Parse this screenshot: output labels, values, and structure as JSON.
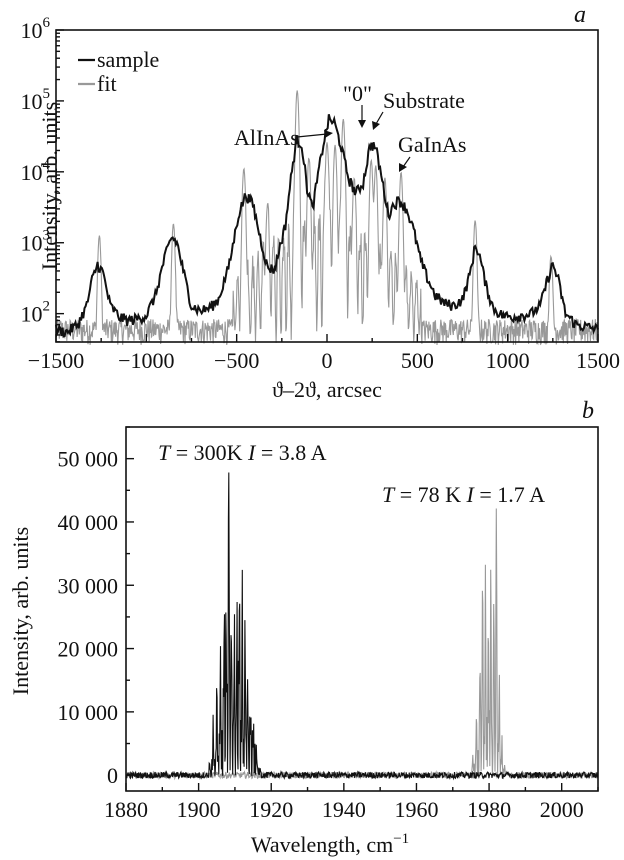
{
  "chart_data": [
    {
      "panel": "a",
      "type": "line",
      "xlabel": "ϑ–2ϑ, arcsec",
      "ylabel": "Intensity, arb. units",
      "xlim": [
        -1500,
        1500
      ],
      "ylim_log10": [
        1.6,
        6
      ],
      "yscale": "log",
      "x_ticks": [
        "−1500",
        "−1000",
        "−500",
        "0",
        "500",
        "1000",
        "1500"
      ],
      "y_ticks": [
        {
          "base": "10",
          "exp": "2"
        },
        {
          "base": "10",
          "exp": "3"
        },
        {
          "base": "10",
          "exp": "4"
        },
        {
          "base": "10",
          "exp": "5"
        },
        {
          "base": "10",
          "exp": "6"
        }
      ],
      "legend": {
        "position": "top-left",
        "entries": [
          "sample",
          "fit"
        ]
      },
      "series": [
        {
          "name": "sample",
          "color": "#111111",
          "points": [
            [
              -1500,
              60
            ],
            [
              -1440,
              55
            ],
            [
              -1380,
              70
            ],
            [
              -1330,
              130
            ],
            [
              -1300,
              300
            ],
            [
              -1270,
              500
            ],
            [
              -1240,
              380
            ],
            [
              -1200,
              130
            ],
            [
              -1150,
              90
            ],
            [
              -1100,
              80
            ],
            [
              -1050,
              85
            ],
            [
              -1000,
              95
            ],
            [
              -950,
              180
            ],
            [
              -900,
              600
            ],
            [
              -860,
              1200
            ],
            [
              -830,
              1000
            ],
            [
              -790,
              350
            ],
            [
              -750,
              130
            ],
            [
              -700,
              110
            ],
            [
              -650,
              120
            ],
            [
              -600,
              160
            ],
            [
              -540,
              500
            ],
            [
              -490,
              2500
            ],
            [
              -450,
              4800
            ],
            [
              -410,
              3500
            ],
            [
              -370,
              1200
            ],
            [
              -330,
              450
            ],
            [
              -290,
              420
            ],
            [
              -260,
              900
            ],
            [
              -230,
              1800
            ],
            [
              -200,
              8000
            ],
            [
              -170,
              28000
            ],
            [
              -140,
              25000
            ],
            [
              -110,
              6000
            ],
            [
              -80,
              3000
            ],
            [
              -50,
              9000
            ],
            [
              -20,
              25000
            ],
            [
              10,
              55000
            ],
            [
              40,
              50000
            ],
            [
              80,
              22000
            ],
            [
              120,
              8000
            ],
            [
              160,
              5000
            ],
            [
              200,
              7000
            ],
            [
              240,
              25000
            ],
            [
              270,
              22000
            ],
            [
              300,
              9000
            ],
            [
              340,
              2500
            ],
            [
              370,
              3500
            ],
            [
              400,
              4000
            ],
            [
              440,
              3000
            ],
            [
              480,
              1500
            ],
            [
              520,
              550
            ],
            [
              560,
              300
            ],
            [
              600,
              180
            ],
            [
              650,
              140
            ],
            [
              700,
              130
            ],
            [
              750,
              160
            ],
            [
              790,
              350
            ],
            [
              820,
              900
            ],
            [
              840,
              750
            ],
            [
              880,
              250
            ],
            [
              920,
              120
            ],
            [
              970,
              95
            ],
            [
              1020,
              90
            ],
            [
              1080,
              95
            ],
            [
              1130,
              100
            ],
            [
              1180,
              130
            ],
            [
              1220,
              300
            ],
            [
              1250,
              500
            ],
            [
              1280,
              300
            ],
            [
              1320,
              100
            ],
            [
              1380,
              70
            ],
            [
              1440,
              65
            ],
            [
              1500,
              60
            ]
          ]
        },
        {
          "name": "fit",
          "color": "#999999",
          "peaks": [
            [
              -1260,
              1200
            ],
            [
              -850,
              1800
            ],
            [
              -460,
              11000
            ],
            [
              -330,
              2800
            ],
            [
              -165,
              140000
            ],
            [
              -100,
              14000
            ],
            [
              0,
              26000
            ],
            [
              45,
              22000
            ],
            [
              90,
              55000
            ],
            [
              150,
              7000
            ],
            [
              245,
              14000
            ],
            [
              270,
              11000
            ],
            [
              320,
              8000
            ],
            [
              410,
              9500
            ],
            [
              820,
              2000
            ],
            [
              1240,
              600
            ]
          ],
          "background": 60
        }
      ],
      "annotations": [
        {
          "label": "AlInAs",
          "points_to_x": -165
        },
        {
          "label": "\"0\"",
          "points_to_x": 20
        },
        {
          "label": "Substrate",
          "points_to_x": 75
        },
        {
          "label": "GaInAs",
          "points_to_x": 250
        }
      ]
    },
    {
      "panel": "b",
      "type": "line",
      "xlabel": "Wavelength, cm",
      "xlabel_sup": "−1",
      "ylabel": "Intensity, arb. units",
      "xlim": [
        1880,
        2010
      ],
      "ylim": [
        -2500,
        55000
      ],
      "x_ticks": [
        "1880",
        "1900",
        "1920",
        "1940",
        "1960",
        "1980",
        "2000"
      ],
      "y_ticks": [
        "0",
        "10 000",
        "20 000",
        "30 000",
        "40 000",
        "50 000"
      ],
      "series": [
        {
          "name": "T = 300 K, I = 3.8 A",
          "color": "#111111",
          "envelope_peaks": [
            [
              1903,
              2000
            ],
            [
              1904,
              6000
            ],
            [
              1905,
              12000
            ],
            [
              1906,
              17000
            ],
            [
              1907,
              21000
            ],
            [
              1907.6,
              22000
            ],
            [
              1908.3,
              49000
            ],
            [
              1909,
              23000
            ],
            [
              1909.8,
              17500
            ],
            [
              1910.5,
              19000
            ],
            [
              1911.2,
              25500
            ],
            [
              1912,
              24000
            ],
            [
              1912.8,
              20000
            ],
            [
              1913.5,
              14000
            ],
            [
              1914.3,
              8500
            ],
            [
              1915,
              5000
            ],
            [
              1916,
              2500
            ],
            [
              1917,
              1200
            ]
          ],
          "noise": 500
        },
        {
          "name": "T = 78 K, I = 1.7 A",
          "color": "#999999",
          "envelope_peaks": [
            [
              1975.5,
              3000
            ],
            [
              1976.5,
              9000
            ],
            [
              1977.5,
              18000
            ],
            [
              1978.2,
              31500
            ],
            [
              1979,
              27000
            ],
            [
              1979.8,
              22000
            ],
            [
              1980.5,
              29000
            ],
            [
              1981.3,
              27000
            ],
            [
              1982,
              42000
            ],
            [
              1982.8,
              14000
            ],
            [
              1983.5,
              4000
            ],
            [
              1984.3,
              1500
            ]
          ],
          "noise": 500
        }
      ],
      "annotations": [
        {
          "parts": [
            "T",
            " = 300K   ",
            "I",
            " = 3.8 A"
          ]
        },
        {
          "parts": [
            "T",
            " = 78 K   ",
            "I",
            " = 1.7 A"
          ]
        }
      ]
    }
  ]
}
